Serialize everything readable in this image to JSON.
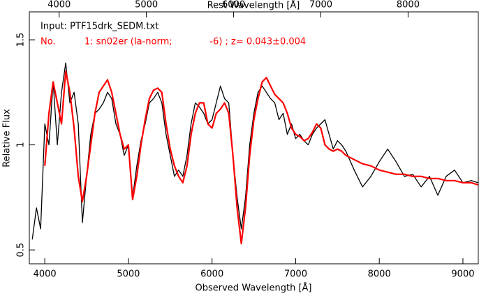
{
  "chart_data": {
    "type": "line",
    "x_label": "Observed Wavelength [Å]",
    "x2_label": "Rest Wavelength [Å]",
    "y_label": "Relative Flux",
    "annotations": [
      {
        "text": "Input: PTF15drk_SEDM.txt",
        "color": "#000000"
      },
      {
        "text": "No.          1: sn02er (Ia-norm;             -6) ; z= 0.043±0.004",
        "color": "#ff0000"
      }
    ],
    "xlim": [
      3815,
      9184
    ],
    "xticks": [
      4000,
      5000,
      6000,
      7000,
      8000,
      9000
    ],
    "x2lim": [
      3658,
      8805
    ],
    "x2ticks": [
      4000,
      5000,
      6000,
      7000,
      8000
    ],
    "ylim": [
      0.434,
      1.633
    ],
    "yticks": [
      0.5,
      1,
      1.5
    ],
    "x": [
      3850,
      3900,
      3950,
      4000,
      4050,
      4100,
      4150,
      4200,
      4250,
      4300,
      4350,
      4400,
      4450,
      4500,
      4550,
      4600,
      4650,
      4700,
      4750,
      4800,
      4850,
      4900,
      4950,
      5000,
      5050,
      5100,
      5150,
      5200,
      5250,
      5300,
      5350,
      5400,
      5450,
      5500,
      5550,
      5600,
      5650,
      5700,
      5750,
      5800,
      5850,
      5900,
      5950,
      6000,
      6050,
      6100,
      6150,
      6200,
      6250,
      6300,
      6350,
      6400,
      6450,
      6500,
      6550,
      6600,
      6650,
      6700,
      6750,
      6800,
      6850,
      6900,
      6950,
      7000,
      7050,
      7100,
      7150,
      7200,
      7250,
      7300,
      7350,
      7400,
      7450,
      7500,
      7550,
      7600,
      7700,
      7800,
      7900,
      8000,
      8100,
      8200,
      8300,
      8400,
      8500,
      8600,
      8700,
      8800,
      8900,
      9000,
      9100,
      9180
    ],
    "series": [
      {
        "color": "#000000",
        "values": [
          0.55,
          0.7,
          0.6,
          1.1,
          1.0,
          1.3,
          1.0,
          1.25,
          1.39,
          1.2,
          1.25,
          1.1,
          0.63,
          0.85,
          1.05,
          1.15,
          1.17,
          1.2,
          1.25,
          1.22,
          1.1,
          1.05,
          0.95,
          1.0,
          0.75,
          0.9,
          1.02,
          1.1,
          1.2,
          1.22,
          1.25,
          1.2,
          1.05,
          0.95,
          0.85,
          0.88,
          0.85,
          0.95,
          1.1,
          1.2,
          1.18,
          1.15,
          1.1,
          1.12,
          1.2,
          1.28,
          1.22,
          1.2,
          0.95,
          0.75,
          0.6,
          0.75,
          1.0,
          1.15,
          1.25,
          1.28,
          1.25,
          1.22,
          1.2,
          1.12,
          1.15,
          1.05,
          1.1,
          1.03,
          1.05,
          1.02,
          1.0,
          1.05,
          1.08,
          1.1,
          1.12,
          1.05,
          0.98,
          1.02,
          1.0,
          0.97,
          0.88,
          0.8,
          0.85,
          0.92,
          0.98,
          0.92,
          0.85,
          0.86,
          0.8,
          0.85,
          0.76,
          0.85,
          0.88,
          0.82,
          0.83,
          0.82
        ]
      },
      {
        "color": "#ff0000",
        "values": [
          null,
          null,
          null,
          0.9,
          1.15,
          1.3,
          1.2,
          1.1,
          1.35,
          1.25,
          1.08,
          0.85,
          0.73,
          0.85,
          1.0,
          1.15,
          1.25,
          1.28,
          1.31,
          1.25,
          1.15,
          1.05,
          0.98,
          1.0,
          0.74,
          0.85,
          1.0,
          1.12,
          1.22,
          1.26,
          1.27,
          1.25,
          1.1,
          0.98,
          0.9,
          0.85,
          0.82,
          0.9,
          1.05,
          1.15,
          1.2,
          1.2,
          1.1,
          1.08,
          1.15,
          1.17,
          1.2,
          1.15,
          0.95,
          0.7,
          0.53,
          0.7,
          0.95,
          1.12,
          1.22,
          1.3,
          1.32,
          1.28,
          1.24,
          1.22,
          1.2,
          1.15,
          1.08,
          1.05,
          1.04,
          1.02,
          1.03,
          1.06,
          1.1,
          1.08,
          1.0,
          0.98,
          0.97,
          0.98,
          0.97,
          0.95,
          0.93,
          0.91,
          0.9,
          0.88,
          0.87,
          0.86,
          0.86,
          0.85,
          0.85,
          0.84,
          0.84,
          0.83,
          0.83,
          0.82,
          0.82,
          0.81
        ]
      }
    ]
  }
}
